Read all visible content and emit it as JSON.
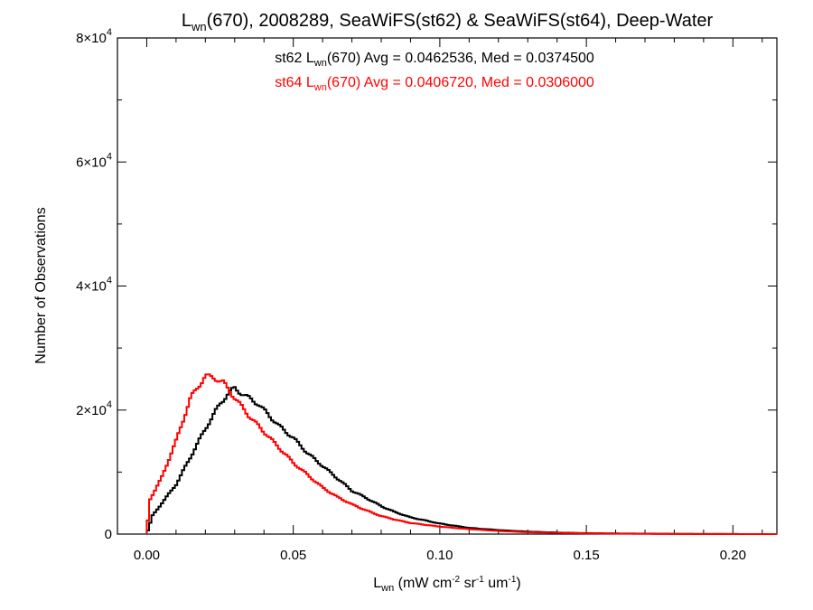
{
  "chart_data": {
    "type": "histogram-step",
    "title": {
      "prefix": "L",
      "sub": "wn",
      "rest": "(670), 2008289, SeaWiFS(st62) & SeaWiFS(st64), Deep-Water"
    },
    "xlabel": {
      "prefix": "L",
      "sub": "wn",
      "units_a": " (mW cm",
      "sup1": "-2",
      "units_b": " sr",
      "sup2": "-1",
      "units_c": " um",
      "sup3": "-1",
      "units_d": ")"
    },
    "ylabel": "Number of Observations",
    "xlim": [
      -0.01,
      0.215
    ],
    "ylim": [
      0,
      80000
    ],
    "xticks": [
      {
        "value": 0.0,
        "label": "0.00"
      },
      {
        "value": 0.05,
        "label": "0.05"
      },
      {
        "value": 0.1,
        "label": "0.10"
      },
      {
        "value": 0.15,
        "label": "0.15"
      },
      {
        "value": 0.2,
        "label": "0.20"
      }
    ],
    "yticks": [
      {
        "value": 0,
        "label": "0",
        "base": "",
        "exp": ""
      },
      {
        "value": 20000,
        "label": "",
        "base": "2×10",
        "exp": "4"
      },
      {
        "value": 40000,
        "label": "",
        "base": "4×10",
        "exp": "4"
      },
      {
        "value": 60000,
        "label": "",
        "base": "6×10",
        "exp": "4"
      },
      {
        "value": 80000,
        "label": "",
        "base": "8×10",
        "exp": "4"
      }
    ],
    "annotations": [
      {
        "series": "st62",
        "color": "#000000",
        "prefix": "st62 L",
        "sub": "wn",
        "rest": "(670) Avg = 0.0462536, Med = 0.0374500"
      },
      {
        "series": "st64",
        "color": "#ff0000",
        "prefix": "st64 L",
        "sub": "wn",
        "rest": "(670) Avg = 0.0406720, Med = 0.0306000"
      }
    ],
    "grid": false,
    "series": [
      {
        "name": "st62",
        "color": "#000000",
        "points": [
          [
            0.0,
            0
          ],
          [
            0.002,
            3000
          ],
          [
            0.006,
            5500
          ],
          [
            0.01,
            8000
          ],
          [
            0.015,
            12500
          ],
          [
            0.02,
            17000
          ],
          [
            0.025,
            21000
          ],
          [
            0.028,
            22800
          ],
          [
            0.03,
            23500
          ],
          [
            0.033,
            22500
          ],
          [
            0.038,
            21000
          ],
          [
            0.045,
            17500
          ],
          [
            0.05,
            15500
          ],
          [
            0.055,
            13000
          ],
          [
            0.06,
            11000
          ],
          [
            0.065,
            9000
          ],
          [
            0.07,
            7000
          ],
          [
            0.075,
            5800
          ],
          [
            0.08,
            4500
          ],
          [
            0.085,
            3500
          ],
          [
            0.09,
            2700
          ],
          [
            0.1,
            1700
          ],
          [
            0.11,
            1000
          ],
          [
            0.12,
            650
          ],
          [
            0.13,
            400
          ],
          [
            0.14,
            250
          ],
          [
            0.15,
            150
          ],
          [
            0.16,
            100
          ],
          [
            0.17,
            70
          ],
          [
            0.18,
            40
          ],
          [
            0.19,
            20
          ],
          [
            0.2,
            10
          ],
          [
            0.215,
            5
          ]
        ]
      },
      {
        "name": "st64",
        "color": "#ff0000",
        "points": [
          [
            0.0,
            0
          ],
          [
            0.001,
            5500
          ],
          [
            0.005,
            9000
          ],
          [
            0.01,
            15000
          ],
          [
            0.015,
            22000
          ],
          [
            0.02,
            25500
          ],
          [
            0.023,
            25200
          ],
          [
            0.026,
            24500
          ],
          [
            0.03,
            22000
          ],
          [
            0.035,
            19000
          ],
          [
            0.04,
            16500
          ],
          [
            0.045,
            14000
          ],
          [
            0.05,
            11500
          ],
          [
            0.055,
            9500
          ],
          [
            0.06,
            7500
          ],
          [
            0.065,
            6000
          ],
          [
            0.07,
            4800
          ],
          [
            0.075,
            3800
          ],
          [
            0.08,
            2900
          ],
          [
            0.085,
            2300
          ],
          [
            0.09,
            1800
          ],
          [
            0.1,
            1200
          ],
          [
            0.11,
            800
          ],
          [
            0.12,
            500
          ],
          [
            0.13,
            300
          ],
          [
            0.14,
            200
          ],
          [
            0.15,
            120
          ],
          [
            0.16,
            80
          ],
          [
            0.17,
            50
          ],
          [
            0.18,
            30
          ],
          [
            0.19,
            15
          ],
          [
            0.2,
            8
          ],
          [
            0.215,
            4
          ]
        ]
      }
    ]
  }
}
